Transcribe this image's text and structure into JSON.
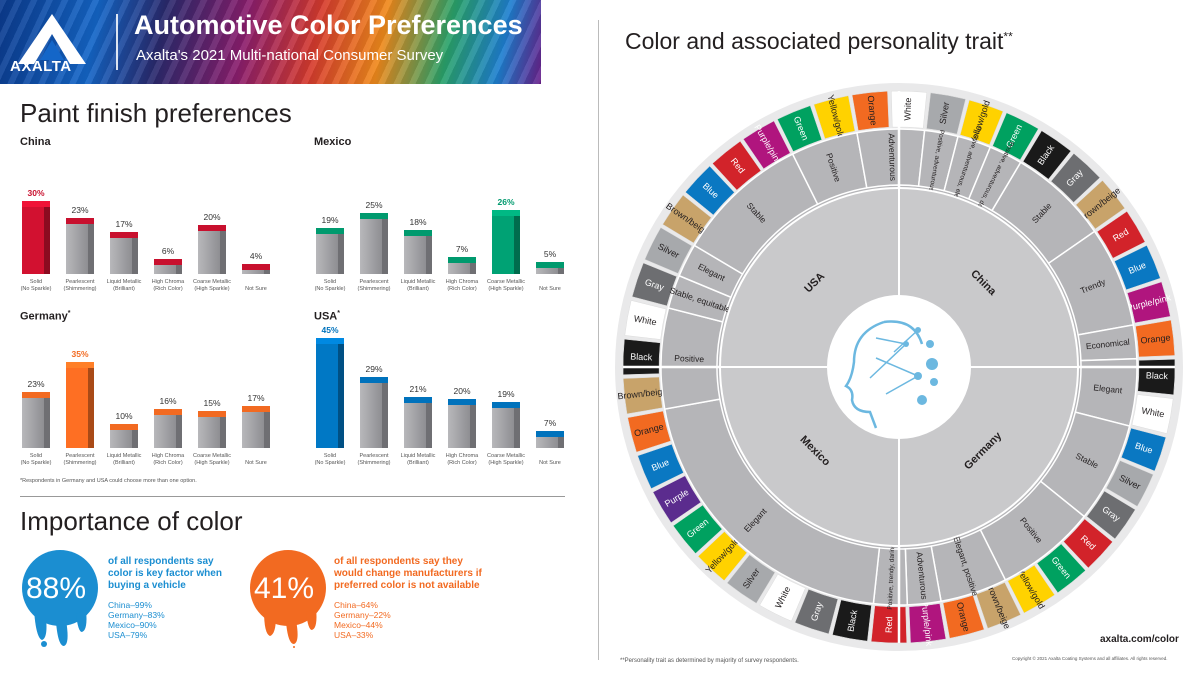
{
  "header": {
    "logo_text": "AXALTA",
    "title": "Automotive Color Preferences",
    "subtitle": "Axalta's 2021 Multi-national Consumer Survey"
  },
  "paint_section_title": "Paint finish preferences",
  "footnote": "*Respondents in Germany and USA could choose more than one option.",
  "chart_data": [
    {
      "type": "bar",
      "title": "China",
      "title_sup": "",
      "categories": [
        "Solid (No Sparkle)",
        "Pearlescent (Shimmering)",
        "Liquid Metallic (Brilliant)",
        "High Chroma (Rich Color)",
        "Coarse Metallic (High Sparkle)",
        "Not Sure"
      ],
      "cat_lines": [
        [
          "Solid",
          "(No Sparkle)"
        ],
        [
          "Pearlescent",
          "(Shimmering)"
        ],
        [
          "Liquid Metallic",
          "(Brilliant)"
        ],
        [
          "High Chroma",
          "(Rich Color)"
        ],
        [
          "Coarse Metallic",
          "(High Sparkle)"
        ],
        [
          "Not Sure",
          ""
        ]
      ],
      "values": [
        30,
        23,
        17,
        6,
        20,
        4
      ],
      "labels": [
        "30%",
        "23%",
        "17%",
        "6%",
        "20%",
        "4%"
      ],
      "accent": "#c8102e",
      "highlight_index": 0,
      "ylim": [
        0,
        45
      ]
    },
    {
      "type": "bar",
      "title": "Mexico",
      "title_sup": "",
      "categories": [
        "Solid (No Sparkle)",
        "Pearlescent (Shimmering)",
        "Liquid Metallic (Brilliant)",
        "High Chroma (Rich Color)",
        "Coarse Metallic (High Sparkle)",
        "Not Sure"
      ],
      "cat_lines": [
        [
          "Solid",
          "(No Sparkle)"
        ],
        [
          "Pearlescent",
          "(Shimmering)"
        ],
        [
          "Liquid Metallic",
          "(Brilliant)"
        ],
        [
          "High Chroma",
          "(Rich Color)"
        ],
        [
          "Coarse Metallic",
          "(High Sparkle)"
        ],
        [
          "Not Sure",
          ""
        ]
      ],
      "values": [
        19,
        25,
        18,
        7,
        26,
        5
      ],
      "labels": [
        "19%",
        "25%",
        "18%",
        "7%",
        "26%",
        "5%"
      ],
      "accent": "#009a6e",
      "highlight_index": 4,
      "ylim": [
        0,
        45
      ]
    },
    {
      "type": "bar",
      "title": "Germany",
      "title_sup": "*",
      "categories": [
        "Solid (No Sparkle)",
        "Pearlescent (Shimmering)",
        "Liquid Metallic (Brilliant)",
        "High Chroma (Rich Color)",
        "Coarse Metallic (High Sparkle)",
        "Not Sure"
      ],
      "cat_lines": [
        [
          "Solid",
          "(No Sparkle)"
        ],
        [
          "Pearlescent",
          "(Shimmering)"
        ],
        [
          "Liquid Metallic",
          "(Brilliant)"
        ],
        [
          "High Chroma",
          "(Rich Color)"
        ],
        [
          "Coarse Metallic",
          "(High Sparkle)"
        ],
        [
          "Not Sure",
          ""
        ]
      ],
      "values": [
        23,
        35,
        10,
        16,
        15,
        17
      ],
      "labels": [
        "23%",
        "35%",
        "10%",
        "16%",
        "15%",
        "17%"
      ],
      "accent": "#f26a21",
      "highlight_index": 1,
      "ylim": [
        0,
        45
      ]
    },
    {
      "type": "bar",
      "title": "USA",
      "title_sup": "*",
      "categories": [
        "Solid (No Sparkle)",
        "Pearlescent (Shimmering)",
        "Liquid Metallic (Brilliant)",
        "High Chroma (Rich Color)",
        "Coarse Metallic (High Sparkle)",
        "Not Sure"
      ],
      "cat_lines": [
        [
          "Solid",
          "(No Sparkle)"
        ],
        [
          "Pearlescent",
          "(Shimmering)"
        ],
        [
          "Liquid Metallic",
          "(Brilliant)"
        ],
        [
          "High Chroma",
          "(Rich Color)"
        ],
        [
          "Coarse Metallic",
          "(High Sparkle)"
        ],
        [
          "Not Sure",
          ""
        ]
      ],
      "values": [
        45,
        29,
        21,
        20,
        19,
        7
      ],
      "labels": [
        "45%",
        "29%",
        "21%",
        "20%",
        "19%",
        "7%"
      ],
      "accent": "#0072bc",
      "highlight_index": 0,
      "ylim": [
        0,
        45
      ]
    }
  ],
  "importance": {
    "title": "Importance of color",
    "left": {
      "pct": "88%",
      "color": "#1b8ed1",
      "lines": [
        "of all respondents say",
        "color is key factor when",
        "buying a vehicle"
      ],
      "breakdown": [
        "China–99%",
        "Germany–83%",
        "Mexico–90%",
        "USA–79%"
      ]
    },
    "right": {
      "pct": "41%",
      "color": "#f26a21",
      "lines": [
        "of all respondents say they",
        "would change manufacturers if",
        "preferred color is not available"
      ],
      "breakdown": [
        "China–64%",
        "Germany–22%",
        "Mexico–44%",
        "USA–33%"
      ]
    }
  },
  "wheel": {
    "title": "Color and associated personality trait",
    "title_sup": "**",
    "countries": [
      "China",
      "Germany",
      "Mexico",
      "USA"
    ],
    "colors_outer": [
      {
        "label": "White",
        "hex": "#ffffff",
        "text": "#231f20"
      },
      {
        "label": "Silver",
        "hex": "#a7a9ac",
        "text": "#231f20"
      },
      {
        "label": "Yellow/gold",
        "hex": "#ffd200",
        "text": "#231f20"
      },
      {
        "label": "Green",
        "hex": "#00a160",
        "text": "#ffffff"
      },
      {
        "label": "Black",
        "hex": "#1a1a1a",
        "text": "#ffffff"
      },
      {
        "label": "Gray",
        "hex": "#6d6e71",
        "text": "#ffffff"
      },
      {
        "label": "Brown/beige",
        "hex": "#c8a36a",
        "text": "#231f20"
      },
      {
        "label": "Red",
        "hex": "#d2232a",
        "text": "#ffffff"
      },
      {
        "label": "Blue",
        "hex": "#0a78c2",
        "text": "#ffffff"
      },
      {
        "label": "Purple/pink",
        "hex": "#b0157e",
        "text": "#ffffff"
      },
      {
        "label": "Orange",
        "hex": "#f26a21",
        "text": "#231f20"
      },
      {
        "label": "Black",
        "hex": "#1a1a1a",
        "text": "#ffffff"
      },
      {
        "label": "White",
        "hex": "#ffffff",
        "text": "#231f20"
      },
      {
        "label": "Blue",
        "hex": "#0a78c2",
        "text": "#ffffff"
      },
      {
        "label": "Silver",
        "hex": "#a7a9ac",
        "text": "#231f20"
      },
      {
        "label": "Gray",
        "hex": "#6d6e71",
        "text": "#ffffff"
      },
      {
        "label": "Red",
        "hex": "#d2232a",
        "text": "#ffffff"
      },
      {
        "label": "Green",
        "hex": "#00a160",
        "text": "#ffffff"
      },
      {
        "label": "Yellow/gold",
        "hex": "#ffd200",
        "text": "#231f20"
      },
      {
        "label": "Brown/beige",
        "hex": "#c8a36a",
        "text": "#231f20"
      },
      {
        "label": "Orange",
        "hex": "#f26a21",
        "text": "#231f20"
      },
      {
        "label": "Purple/pink",
        "hex": "#b0157e",
        "text": "#ffffff"
      },
      {
        "label": "Red",
        "hex": "#d2232a",
        "text": "#ffffff"
      },
      {
        "label": "Black",
        "hex": "#1a1a1a",
        "text": "#ffffff"
      },
      {
        "label": "Gray",
        "hex": "#6d6e71",
        "text": "#ffffff"
      },
      {
        "label": "White",
        "hex": "#ffffff",
        "text": "#231f20"
      },
      {
        "label": "Silver",
        "hex": "#a7a9ac",
        "text": "#231f20"
      },
      {
        "label": "Yellow/gold",
        "hex": "#ffd200",
        "text": "#231f20"
      },
      {
        "label": "Green",
        "hex": "#00a160",
        "text": "#ffffff"
      },
      {
        "label": "Purple",
        "hex": "#5b2c8e",
        "text": "#ffffff"
      },
      {
        "label": "Blue",
        "hex": "#0a78c2",
        "text": "#ffffff"
      },
      {
        "label": "Orange",
        "hex": "#f26a21",
        "text": "#231f20"
      },
      {
        "label": "Brown/beige",
        "hex": "#c8a36a",
        "text": "#231f20"
      },
      {
        "label": "Black",
        "hex": "#1a1a1a",
        "text": "#ffffff"
      },
      {
        "label": "White",
        "hex": "#ffffff",
        "text": "#231f20"
      },
      {
        "label": "Gray",
        "hex": "#6d6e71",
        "text": "#ffffff"
      },
      {
        "label": "Silver",
        "hex": "#a7a9ac",
        "text": "#231f20"
      },
      {
        "label": "Brown/beige",
        "hex": "#c8a36a",
        "text": "#231f20"
      },
      {
        "label": "Blue",
        "hex": "#0a78c2",
        "text": "#ffffff"
      },
      {
        "label": "Red",
        "hex": "#d2232a",
        "text": "#ffffff"
      },
      {
        "label": "Purple/pink",
        "hex": "#b0157e",
        "text": "#ffffff"
      },
      {
        "label": "Green",
        "hex": "#00a160",
        "text": "#ffffff"
      },
      {
        "label": "Yellow/gold",
        "hex": "#ffd200",
        "text": "#231f20"
      },
      {
        "label": "Orange",
        "hex": "#f26a21",
        "text": "#231f20"
      }
    ],
    "traits": [
      {
        "label": "Elegant",
        "span": 4
      },
      {
        "label": "Stable",
        "span": 3
      },
      {
        "label": "Trendy",
        "span": 3
      },
      {
        "label": "Economical",
        "span": 1
      },
      {
        "label": "Elegant",
        "span": 2
      },
      {
        "label": "Stable",
        "span": 3
      },
      {
        "label": "Positive",
        "span": 3
      },
      {
        "label": "Elegant, positive",
        "span": 2
      },
      {
        "label": "Adventurous",
        "span": 1
      },
      {
        "label": "Positive, trendy, daring",
        "span": 1
      },
      {
        "label": "Elegant",
        "span": 9
      },
      {
        "label": "Positive",
        "span": 3
      },
      {
        "label": "Stable, equitable",
        "span": 1
      },
      {
        "label": "Elegant",
        "span": 1
      },
      {
        "label": "Stable",
        "span": 4
      },
      {
        "label": "Positive",
        "span": 2
      },
      {
        "label": "Adventurous",
        "span": 2
      },
      {
        "label": "Positive, adventurous",
        "span": 1
      },
      {
        "label": "Positive, adventurous, elegant",
        "span": 1
      },
      {
        "label": "Positive, adventurous, daring",
        "span": 1
      }
    ],
    "url": "axalta.com/color",
    "copyright": "Copyright © 2021 Axalta Coating Systems and all affiliates. All rights reserved.",
    "note": "**Personality trait as determined by majority of survey respondents."
  }
}
